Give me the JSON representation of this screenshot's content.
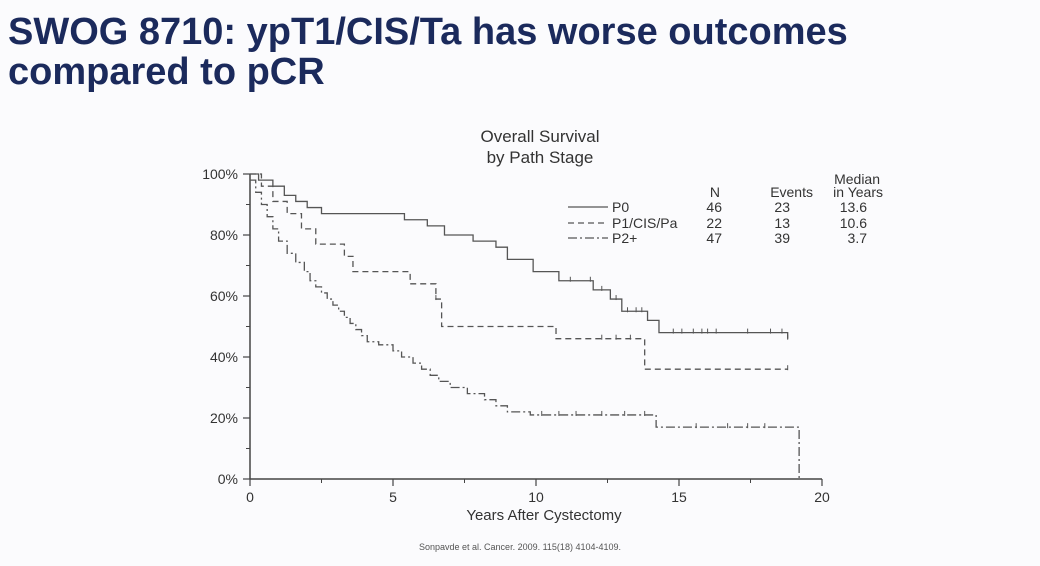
{
  "slide": {
    "title": "SWOG 8710: ypT1/CIS/Ta has worse outcomes compared to pCR",
    "citation": "Sonpavde et al. Cancer. 2009. 115(18) 4104-4109."
  },
  "chart_data": {
    "type": "line",
    "title": "Overall Survival",
    "subtitle": "by Path Stage",
    "xlabel": "Years After Cystectomy",
    "ylabel": "",
    "xlim": [
      0,
      20
    ],
    "ylim": [
      0,
      100
    ],
    "x_ticks": [
      0,
      5,
      10,
      15,
      20
    ],
    "x_tick_labels": [
      "0",
      "5",
      "10",
      "15",
      "20"
    ],
    "y_ticks": [
      0,
      20,
      40,
      60,
      80,
      100
    ],
    "y_tick_labels": [
      "0%",
      "20%",
      "40%",
      "60%",
      "80%",
      "100%"
    ],
    "grid": false,
    "step": true,
    "legend": {
      "placement": "top-right",
      "headers": {
        "n": "N",
        "events": "Events",
        "median_line1": "Median",
        "median_line2": "in Years"
      }
    },
    "series": [
      {
        "name": "P0",
        "dash": "solid",
        "n": "46",
        "events": "23",
        "median": "13.6",
        "x": [
          0,
          0.3,
          0.8,
          1.2,
          1.6,
          2.0,
          2.5,
          5.4,
          6.2,
          6.8,
          7.8,
          8.6,
          9.0,
          9.9,
          10.8,
          12.0,
          12.6,
          13.0,
          13.9,
          14.3,
          18.8
        ],
        "y": [
          100,
          98,
          96,
          93,
          91,
          89,
          87,
          85,
          83,
          80,
          78,
          76,
          72,
          68,
          65,
          62,
          59,
          55,
          52,
          48,
          46
        ],
        "censor": [
          11.2,
          11.9,
          12.3,
          12.8,
          13.2,
          13.5,
          13.7,
          14.8,
          15.1,
          15.5,
          15.8,
          16.0,
          16.3,
          17.4,
          18.2,
          18.6,
          18.8
        ]
      },
      {
        "name": "P1/CIS/Pa",
        "dash": "dashed",
        "n": "22",
        "events": "13",
        "median": "10.6",
        "x": [
          0,
          0.4,
          0.8,
          1.3,
          1.8,
          2.3,
          3.3,
          3.6,
          5.6,
          6.5,
          6.7,
          10.7,
          13.8,
          18.8
        ],
        "y": [
          100,
          96,
          91,
          87,
          82,
          77,
          73,
          68,
          64,
          59,
          50,
          46,
          36,
          36
        ],
        "censor": [
          6.5,
          12.3,
          12.8,
          13.3,
          18.8
        ]
      },
      {
        "name": "P2+",
        "dash": "dashdot",
        "n": "47",
        "events": "39",
        "median": "3.7",
        "x": [
          0,
          0.2,
          0.4,
          0.6,
          0.8,
          1.0,
          1.3,
          1.6,
          1.9,
          2.1,
          2.3,
          2.5,
          2.7,
          2.9,
          3.1,
          3.3,
          3.5,
          3.7,
          3.9,
          4.1,
          4.5,
          5.0,
          5.3,
          5.7,
          6.0,
          6.3,
          6.6,
          7.0,
          7.6,
          8.2,
          8.6,
          9.0,
          9.8,
          14.2,
          19.2
        ],
        "y": [
          98,
          94,
          90,
          86,
          82,
          78,
          74,
          71,
          68,
          65,
          63,
          61,
          59,
          57,
          55,
          53,
          51,
          49,
          47,
          45,
          44,
          42,
          40,
          38,
          36,
          34,
          32,
          30,
          28,
          26,
          24,
          22,
          21,
          17,
          17
        ],
        "censor": [
          10.2,
          10.8,
          11.4,
          12.3,
          13.1,
          13.8,
          15.6,
          16.7,
          17.4,
          18.0
        ],
        "end_drop_x": 19.2
      }
    ]
  }
}
